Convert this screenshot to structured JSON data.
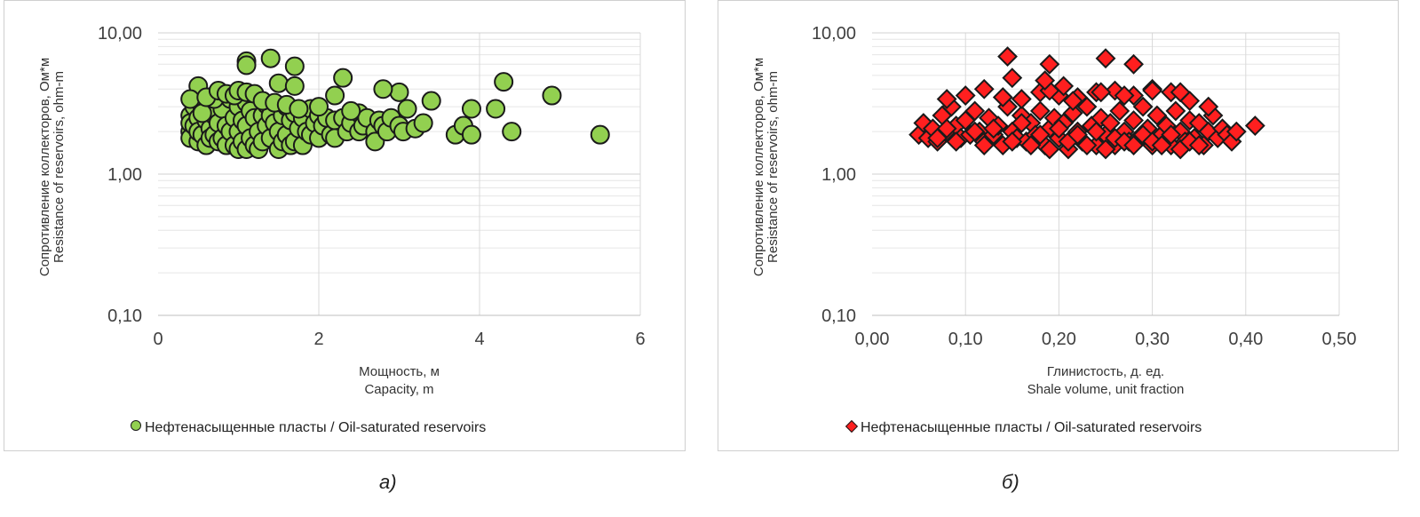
{
  "chart_data": [
    {
      "type": "scatter",
      "y_scale": "log",
      "ylim": [
        0.1,
        10
      ],
      "xlim": [
        0,
        6
      ],
      "x_ticks": [
        "0",
        "2",
        "4",
        "6"
      ],
      "y_ticks": [
        "10,00",
        "1,00",
        "0,10"
      ],
      "ylabel_line1": "Сопротивление коллекторов, Ом*м",
      "ylabel_line2": "Resistance of reservoirs, ohm-m",
      "xlabel_line1": "Мощность, м",
      "xlabel_line2": "Capacity, m",
      "legend": "Нефтенасыщенные пласты / Oil-saturated reservoirs",
      "marker": "circle",
      "color": "#92d050",
      "edge_color": "#1a1a1a",
      "grid": true,
      "caption": "а)",
      "series": [
        {
          "name": "Нефтенасыщенные пласты / Oil-saturated reservoirs",
          "x": [
            0.4,
            0.4,
            0.4,
            0.4,
            0.45,
            0.45,
            0.5,
            0.5,
            0.5,
            0.55,
            0.55,
            0.6,
            0.6,
            0.6,
            0.65,
            0.65,
            0.7,
            0.7,
            0.7,
            0.75,
            0.75,
            0.8,
            0.8,
            0.85,
            0.85,
            0.9,
            0.9,
            0.95,
            0.95,
            1.0,
            1.0,
            1.0,
            1.05,
            1.05,
            1.1,
            1.1,
            1.1,
            1.15,
            1.15,
            1.2,
            1.2,
            1.25,
            1.25,
            1.3,
            1.3,
            1.35,
            1.35,
            1.4,
            1.4,
            1.45,
            1.5,
            1.5,
            1.55,
            1.55,
            1.6,
            1.6,
            1.65,
            1.65,
            1.7,
            1.7,
            1.75,
            1.8,
            1.8,
            1.85,
            1.9,
            1.9,
            1.95,
            2.0,
            2.0,
            2.05,
            2.1,
            2.15,
            2.2,
            2.2,
            2.3,
            2.35,
            2.4,
            2.5,
            2.5,
            2.55,
            2.6,
            2.7,
            2.7,
            2.75,
            2.8,
            2.85,
            2.9,
            3.0,
            3.0,
            3.05,
            3.1,
            3.2,
            3.3,
            3.4,
            1.1,
            1.1,
            1.4,
            1.7,
            1.5,
            1.7,
            2.3,
            2.2,
            0.5,
            0.7,
            0.4,
            0.55,
            0.6,
            0.75,
            0.85,
            0.95,
            1.0,
            1.1,
            1.2,
            1.3,
            1.45,
            1.6,
            1.75,
            2.0,
            2.4,
            2.8,
            3.7,
            3.8,
            3.9,
            3.9,
            4.2,
            4.3,
            4.4,
            4.9,
            5.5
          ],
          "y": [
            2.6,
            2.0,
            1.8,
            2.3,
            3.0,
            2.2,
            2.5,
            1.7,
            2.0,
            2.8,
            1.9,
            2.4,
            1.6,
            3.2,
            2.1,
            1.8,
            2.6,
            1.9,
            3.6,
            2.3,
            1.7,
            2.9,
            1.8,
            2.2,
            1.6,
            3.4,
            2.0,
            2.5,
            1.6,
            2.0,
            1.5,
            3.0,
            2.4,
            1.7,
            2.2,
            1.5,
            3.2,
            2.8,
            1.8,
            2.5,
            1.6,
            2.0,
            1.5,
            2.6,
            1.7,
            3.1,
            2.2,
            1.8,
            2.6,
            2.3,
            1.5,
            2.0,
            2.6,
            1.7,
            3.0,
            1.9,
            2.4,
            1.6,
            2.7,
            1.7,
            2.1,
            2.5,
            1.6,
            2.0,
            2.9,
            1.9,
            2.3,
            2.6,
            1.8,
            2.2,
            2.5,
            1.9,
            2.4,
            1.8,
            2.5,
            2.0,
            2.3,
            2.7,
            2.0,
            2.2,
            2.5,
            2.0,
            1.7,
            2.4,
            2.2,
            2.0,
            2.5,
            2.2,
            3.8,
            2.0,
            2.9,
            2.1,
            2.3,
            3.3,
            6.3,
            5.9,
            6.6,
            5.8,
            4.4,
            4.2,
            4.8,
            3.6,
            4.2,
            3.4,
            3.4,
            2.7,
            3.5,
            3.9,
            3.7,
            3.6,
            3.9,
            3.8,
            3.7,
            3.3,
            3.2,
            3.1,
            2.9,
            3.0,
            2.8,
            4.0,
            1.9,
            2.2,
            2.9,
            1.9,
            2.9,
            4.5,
            2.0,
            3.6,
            1.9
          ]
        }
      ]
    },
    {
      "type": "scatter",
      "y_scale": "log",
      "ylim": [
        0.1,
        10
      ],
      "xlim": [
        0,
        0.5
      ],
      "x_ticks": [
        "0,00",
        "0,10",
        "0,20",
        "0,30",
        "0,40",
        "0,50"
      ],
      "y_ticks": [
        "10,00",
        "1,00",
        "0,10"
      ],
      "ylabel_line1": "Сопротивление коллекторов, Ом*м",
      "ylabel_line2": "Resistance of reservoirs, ohm-m",
      "xlabel_line1": "Глинистость, д. ед.",
      "xlabel_line2": "Shale volume, unit fraction",
      "legend": "Нефтенасыщенные пласты / Oil-saturated reservoirs",
      "marker": "diamond",
      "color": "#ff1f1f",
      "edge_color": "#1a1a1a",
      "grid": true,
      "caption": "б)",
      "series": [
        {
          "name": "Нефтенасыщенные пласты / Oil-saturated reservoirs",
          "x": [
            0.05,
            0.055,
            0.06,
            0.065,
            0.07,
            0.075,
            0.08,
            0.085,
            0.09,
            0.095,
            0.1,
            0.105,
            0.11,
            0.115,
            0.12,
            0.125,
            0.13,
            0.135,
            0.14,
            0.145,
            0.15,
            0.155,
            0.16,
            0.165,
            0.17,
            0.175,
            0.18,
            0.185,
            0.19,
            0.195,
            0.2,
            0.205,
            0.21,
            0.215,
            0.22,
            0.225,
            0.23,
            0.235,
            0.24,
            0.245,
            0.25,
            0.255,
            0.26,
            0.265,
            0.27,
            0.275,
            0.28,
            0.285,
            0.29,
            0.295,
            0.3,
            0.305,
            0.31,
            0.315,
            0.32,
            0.325,
            0.33,
            0.335,
            0.34,
            0.345,
            0.35,
            0.355,
            0.36,
            0.365,
            0.37,
            0.375,
            0.38,
            0.385,
            0.39,
            0.41,
            0.07,
            0.08,
            0.09,
            0.11,
            0.12,
            0.13,
            0.15,
            0.16,
            0.17,
            0.18,
            0.19,
            0.2,
            0.21,
            0.22,
            0.23,
            0.24,
            0.25,
            0.26,
            0.27,
            0.28,
            0.29,
            0.3,
            0.31,
            0.32,
            0.33,
            0.34,
            0.35,
            0.08,
            0.1,
            0.12,
            0.14,
            0.16,
            0.18,
            0.2,
            0.22,
            0.24,
            0.26,
            0.28,
            0.3,
            0.32,
            0.34,
            0.36,
            0.145,
            0.19,
            0.25,
            0.28,
            0.205,
            0.15,
            0.19,
            0.215,
            0.185,
            0.245,
            0.27,
            0.3,
            0.33
          ],
          "y": [
            1.9,
            2.3,
            1.8,
            2.1,
            1.7,
            2.6,
            2.0,
            3.0,
            2.2,
            1.8,
            2.4,
            1.9,
            2.8,
            2.0,
            1.7,
            2.5,
            1.9,
            2.2,
            1.6,
            3.0,
            2.0,
            1.8,
            2.6,
            1.7,
            2.3,
            1.9,
            2.8,
            1.6,
            2.1,
            2.5,
            1.8,
            2.3,
            1.5,
            2.7,
            2.0,
            1.7,
            3.0,
            2.2,
            1.6,
            2.5,
            1.9,
            2.3,
            1.6,
            2.8,
            2.0,
            1.7,
            2.4,
            1.8,
            3.0,
            2.1,
            1.6,
            2.6,
            1.9,
            2.2,
            1.6,
            2.8,
            2.0,
            1.7,
            2.4,
            1.8,
            2.3,
            1.6,
            2.0,
            2.6,
            1.8,
            2.1,
            1.9,
            1.7,
            2.0,
            2.2,
            1.8,
            2.1,
            1.7,
            2.0,
            1.6,
            2.1,
            1.7,
            2.3,
            1.6,
            1.9,
            1.5,
            2.1,
            1.7,
            1.9,
            1.6,
            2.0,
            1.5,
            1.8,
            1.7,
            1.6,
            1.9,
            1.7,
            1.6,
            1.9,
            1.5,
            1.7,
            1.6,
            3.4,
            3.6,
            4.0,
            3.5,
            3.4,
            3.8,
            3.6,
            3.5,
            3.8,
            3.9,
            3.6,
            4.0,
            3.8,
            3.3,
            3.0,
            6.8,
            6.0,
            6.6,
            6.0,
            4.2,
            4.8,
            3.9,
            3.3,
            4.6,
            3.8,
            3.6,
            3.9,
            3.8
          ]
        }
      ]
    }
  ]
}
